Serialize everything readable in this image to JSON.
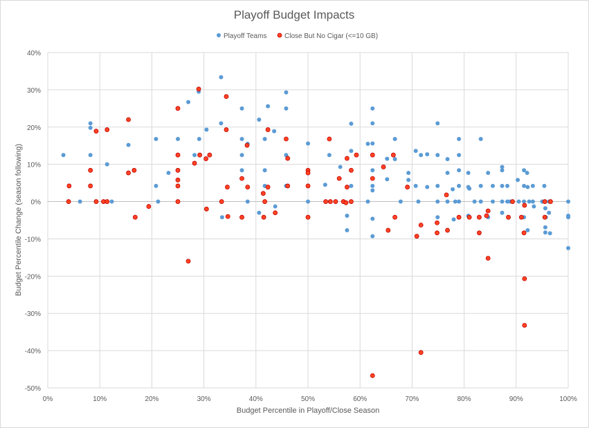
{
  "chart_data": {
    "type": "scatter",
    "title": "Playoff Budget Impacts",
    "xlabel": "Budget Percentile in Playoff/Close Season",
    "ylabel": "Budget Percentile Change (season following)",
    "xlim": [
      0,
      100
    ],
    "ylim": [
      -50,
      40
    ],
    "x_ticks": [
      "0%",
      "10%",
      "20%",
      "30%",
      "40%",
      "50%",
      "60%",
      "70%",
      "80%",
      "90%",
      "100%"
    ],
    "y_ticks": [
      "40%",
      "30%",
      "20%",
      "10%",
      "0%",
      "-10%",
      "-20%",
      "-30%",
      "-40%",
      "-50%"
    ],
    "grid": true,
    "legend_position": "top",
    "series": [
      {
        "name": "Playoff Teams",
        "color": "#5b9bd5",
        "points": [
          [
            3,
            12.5
          ],
          [
            8.2,
            21
          ],
          [
            8.2,
            19.8
          ],
          [
            8.2,
            12.5
          ],
          [
            6.2,
            0
          ],
          [
            11.4,
            10
          ],
          [
            12.3,
            0
          ],
          [
            15.5,
            15.2
          ],
          [
            20.8,
            16.8
          ],
          [
            21.2,
            0
          ],
          [
            20.8,
            4.2
          ],
          [
            23.2,
            7.7
          ],
          [
            25,
            16.8
          ],
          [
            27,
            26.7
          ],
          [
            28.2,
            12.5
          ],
          [
            29,
            29.5
          ],
          [
            29.1,
            16.8
          ],
          [
            30.5,
            19.3
          ],
          [
            33.3,
            33.4
          ],
          [
            33.3,
            21
          ],
          [
            33.5,
            -4.2
          ],
          [
            37.3,
            16.8
          ],
          [
            37.3,
            25
          ],
          [
            37.3,
            12.5
          ],
          [
            37.3,
            8.4
          ],
          [
            38.4,
            0
          ],
          [
            38.4,
            15.5
          ],
          [
            40.6,
            22
          ],
          [
            40.6,
            -3
          ],
          [
            41.7,
            16.8
          ],
          [
            41.7,
            8.4
          ],
          [
            41.7,
            4.2
          ],
          [
            42.3,
            3.8
          ],
          [
            42.3,
            25.6
          ],
          [
            43.5,
            18.9
          ],
          [
            43.7,
            -1.3
          ],
          [
            45.8,
            29.3
          ],
          [
            45.8,
            25
          ],
          [
            45.8,
            12.5
          ],
          [
            45.8,
            4.2
          ],
          [
            50,
            15.6
          ],
          [
            50,
            0
          ],
          [
            53.3,
            4.5
          ],
          [
            54.1,
            12.5
          ],
          [
            54.2,
            0
          ],
          [
            56.2,
            9.3
          ],
          [
            57.5,
            -3.8
          ],
          [
            57.5,
            -7.7
          ],
          [
            58.3,
            20.9
          ],
          [
            58.3,
            13.6
          ],
          [
            58.3,
            4.2
          ],
          [
            58.3,
            8.4
          ],
          [
            61.5,
            15.5
          ],
          [
            61.5,
            0
          ],
          [
            62.4,
            25
          ],
          [
            62.4,
            21
          ],
          [
            62.4,
            15.6
          ],
          [
            62.4,
            8.4
          ],
          [
            62.4,
            4.2
          ],
          [
            62.4,
            3
          ],
          [
            62.4,
            -4.6
          ],
          [
            62.4,
            -9.3
          ],
          [
            65.2,
            11.5
          ],
          [
            65.2,
            6
          ],
          [
            66.7,
            16.8
          ],
          [
            66.7,
            11.4
          ],
          [
            67.8,
            0
          ],
          [
            69.3,
            7.7
          ],
          [
            69.3,
            5.8
          ],
          [
            70.7,
            13.6
          ],
          [
            70.7,
            4.2
          ],
          [
            71.2,
            0
          ],
          [
            71.7,
            12.5
          ],
          [
            72.9,
            12.7
          ],
          [
            72.9,
            3.9
          ],
          [
            74.9,
            21
          ],
          [
            74.9,
            12.5
          ],
          [
            74.9,
            4.2
          ],
          [
            74.9,
            0
          ],
          [
            74.9,
            -4.2
          ],
          [
            76.8,
            11.4
          ],
          [
            76.8,
            7.7
          ],
          [
            76.8,
            0
          ],
          [
            77.8,
            3.3
          ],
          [
            78,
            -4.8
          ],
          [
            78.3,
            0
          ],
          [
            79,
            16.8
          ],
          [
            79,
            12.5
          ],
          [
            79,
            8.4
          ],
          [
            79,
            4.2
          ],
          [
            79,
            0
          ],
          [
            80.8,
            7.7
          ],
          [
            80.8,
            3.9
          ],
          [
            81,
            3.5
          ],
          [
            80.8,
            -3.8
          ],
          [
            82,
            0
          ],
          [
            83.2,
            16.8
          ],
          [
            83.2,
            4.2
          ],
          [
            83.2,
            0
          ],
          [
            84.4,
            -3.8
          ],
          [
            84.6,
            7.7
          ],
          [
            84.6,
            -4.2
          ],
          [
            85.5,
            4.2
          ],
          [
            85.5,
            0
          ],
          [
            87.3,
            9.3
          ],
          [
            87.3,
            8.4
          ],
          [
            87.3,
            4.2
          ],
          [
            87.3,
            0
          ],
          [
            87.3,
            -3
          ],
          [
            88.3,
            4.2
          ],
          [
            88.3,
            0
          ],
          [
            88.8,
            0
          ],
          [
            90.3,
            5.8
          ],
          [
            90.5,
            0
          ],
          [
            91.5,
            8.4
          ],
          [
            91.5,
            4.2
          ],
          [
            91.5,
            0
          ],
          [
            91.5,
            -4.2
          ],
          [
            92.1,
            7.7
          ],
          [
            92.2,
            3.9
          ],
          [
            92.2,
            -7.7
          ],
          [
            92.5,
            0
          ],
          [
            93.2,
            4.2
          ],
          [
            93.2,
            0
          ],
          [
            93.4,
            -1.3
          ],
          [
            95,
            0
          ],
          [
            95.4,
            4.2
          ],
          [
            95.6,
            -1.8
          ],
          [
            95.7,
            -4.2
          ],
          [
            95.6,
            -6.9
          ],
          [
            95.6,
            -8.3
          ],
          [
            96.3,
            0
          ],
          [
            96.3,
            -3
          ],
          [
            96.5,
            -8.5
          ],
          [
            100,
            0
          ],
          [
            100,
            -3.8
          ],
          [
            100,
            -4.2
          ],
          [
            100,
            -12.5
          ]
        ]
      },
      {
        "name": "Close But No Cigar (<=10 GB)",
        "color": "#ff4422",
        "points": [
          [
            4,
            0
          ],
          [
            4.1,
            4.2
          ],
          [
            8.2,
            8.4
          ],
          [
            8.2,
            4.2
          ],
          [
            9.3,
            18.9
          ],
          [
            9.3,
            0
          ],
          [
            10.7,
            0
          ],
          [
            11.4,
            19.3
          ],
          [
            11.4,
            0
          ],
          [
            15.5,
            22
          ],
          [
            15.5,
            7.7
          ],
          [
            16.6,
            8.4
          ],
          [
            16.8,
            -4.2
          ],
          [
            19.4,
            -1.3
          ],
          [
            25,
            25
          ],
          [
            25,
            12.5
          ],
          [
            25,
            8.4
          ],
          [
            25,
            5.8
          ],
          [
            25,
            4.2
          ],
          [
            25,
            0
          ],
          [
            27,
            -16
          ],
          [
            28.2,
            10.3
          ],
          [
            29,
            30.2
          ],
          [
            29.2,
            12.5
          ],
          [
            30.4,
            11.5
          ],
          [
            30.5,
            -2
          ],
          [
            31.1,
            12.5
          ],
          [
            33.4,
            0
          ],
          [
            34.3,
            28.2
          ],
          [
            34.3,
            19.3
          ],
          [
            34.5,
            3.9
          ],
          [
            34.6,
            -4
          ],
          [
            37.3,
            6.2
          ],
          [
            37.3,
            -4.2
          ],
          [
            38.3,
            15.1
          ],
          [
            38.4,
            3.9
          ],
          [
            41.4,
            2.2
          ],
          [
            41.5,
            -4.2
          ],
          [
            41.7,
            0
          ],
          [
            42.3,
            19.3
          ],
          [
            42.3,
            3.9
          ],
          [
            43.7,
            -3
          ],
          [
            45.8,
            16.8
          ],
          [
            46.1,
            11.6
          ],
          [
            46.1,
            4.2
          ],
          [
            50,
            8.4
          ],
          [
            50,
            7.7
          ],
          [
            50,
            4.2
          ],
          [
            50,
            -4.2
          ],
          [
            53.4,
            0
          ],
          [
            54.1,
            16.8
          ],
          [
            54.3,
            0
          ],
          [
            55.3,
            0
          ],
          [
            56,
            6.2
          ],
          [
            56.8,
            0
          ],
          [
            57.5,
            11.6
          ],
          [
            57.5,
            3.9
          ],
          [
            57.3,
            -0.3
          ],
          [
            58.3,
            0
          ],
          [
            58.3,
            8.4
          ],
          [
            59.3,
            12.5
          ],
          [
            62.4,
            12.5
          ],
          [
            62.4,
            6.2
          ],
          [
            62.4,
            -46.7
          ],
          [
            64.5,
            9.3
          ],
          [
            65.4,
            -7.7
          ],
          [
            66.4,
            12.5
          ],
          [
            66.7,
            -4.2
          ],
          [
            69.1,
            3.9
          ],
          [
            70.9,
            -9.3
          ],
          [
            71.7,
            -6.3
          ],
          [
            71.7,
            -40.5
          ],
          [
            74.8,
            -5.7
          ],
          [
            74.8,
            -8.4
          ],
          [
            76.6,
            1.8
          ],
          [
            76.8,
            -7.7
          ],
          [
            79,
            -4.2
          ],
          [
            81,
            -4.2
          ],
          [
            82.9,
            -8.4
          ],
          [
            82.9,
            -4.2
          ],
          [
            84.3,
            -3.8
          ],
          [
            84.6,
            -2.5
          ],
          [
            84.6,
            -15.2
          ],
          [
            88.5,
            -4.2
          ],
          [
            89.3,
            0
          ],
          [
            91,
            -4.2
          ],
          [
            91.6,
            -1
          ],
          [
            91.5,
            -8.4
          ],
          [
            91.6,
            -20.7
          ],
          [
            91.6,
            -33.2
          ],
          [
            95.5,
            0
          ],
          [
            95.5,
            -4.2
          ],
          [
            96.6,
            0
          ]
        ]
      }
    ]
  }
}
